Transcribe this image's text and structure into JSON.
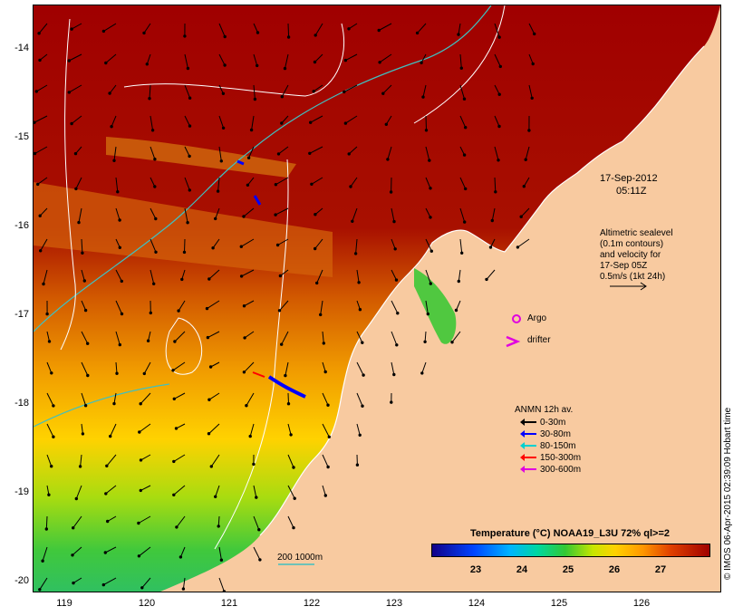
{
  "map": {
    "timestamp_date": "17-Sep-2012",
    "timestamp_time": "05:11Z",
    "altimetry_note": [
      "Altimetric sealevel",
      "(0.1m contours)",
      "and velocity for",
      "17-Sep 05Z",
      "0.5m/s (1kt 24h)"
    ],
    "argo_label": "Argo",
    "drifter_label": "drifter",
    "depth_scale_label": "200  1000m",
    "lat_labels": [
      "-14",
      "-15",
      "-16",
      "-17",
      "-18",
      "-19",
      "-20"
    ],
    "lon_labels": [
      "119",
      "120",
      "121",
      "122",
      "123",
      "124",
      "125",
      "126"
    ],
    "credit": "© IMOS 06-Apr-2015 02:39:09 Hobart time",
    "colors": {
      "land": "#f8caa0",
      "warm_water": "#a00000",
      "cool_water": "#33c833",
      "contour": "#ffffff",
      "bathymetry": "#40c0c0",
      "argo": "#e000e0"
    }
  },
  "legend": {
    "title": "ANMN 12h av.",
    "items": [
      {
        "label": "0-30m",
        "color": "#000000"
      },
      {
        "label": "30-80m",
        "color": "#0000ff"
      },
      {
        "label": "80-150m",
        "color": "#00d0d0"
      },
      {
        "label": "150-300m",
        "color": "#ff0000"
      },
      {
        "label": "300-600m",
        "color": "#e000e0"
      }
    ]
  },
  "colorbar": {
    "title": "Temperature (°C) NOAA19_L3U 72% ql>=2",
    "ticks": [
      "23",
      "24",
      "25",
      "26",
      "27"
    ]
  }
}
